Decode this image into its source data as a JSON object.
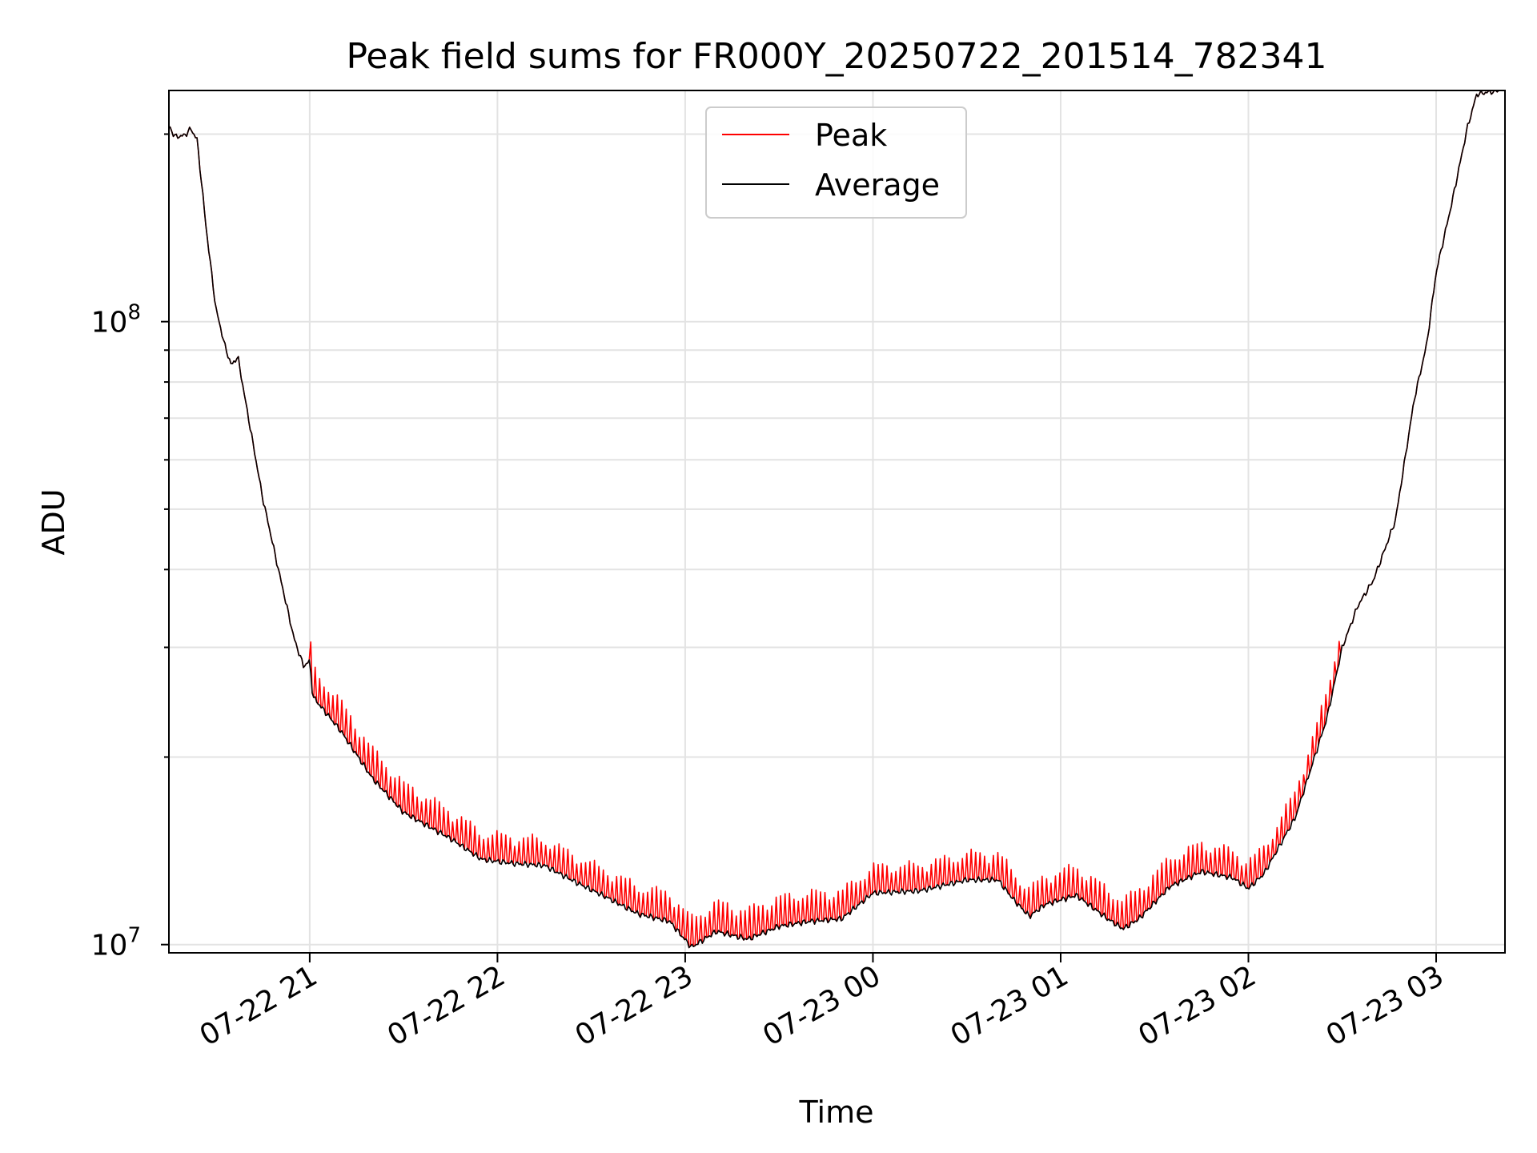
{
  "chart_data": {
    "type": "line",
    "title": "Peak field sums for FR000Y_20250722_201514_782341",
    "xlabel": "Time",
    "ylabel": "ADU",
    "x_type": "datetime",
    "xlim": [
      "2025-07-22 20:15",
      "2025-07-23 03:22"
    ],
    "x_ticks": [
      {
        "x": "2025-07-22 21:00",
        "label": "07-22 21"
      },
      {
        "x": "2025-07-22 22:00",
        "label": "07-22 22"
      },
      {
        "x": "2025-07-22 23:00",
        "label": "07-22 23"
      },
      {
        "x": "2025-07-23 00:00",
        "label": "07-23 00"
      },
      {
        "x": "2025-07-23 01:00",
        "label": "07-23 01"
      },
      {
        "x": "2025-07-23 02:00",
        "label": "07-23 02"
      },
      {
        "x": "2025-07-23 03:00",
        "label": "07-23 03"
      }
    ],
    "yscale": "log",
    "ylim": [
      9700000,
      235000000
    ],
    "y_ticks": [
      {
        "value": 10000000,
        "base": "10",
        "exp": "7"
      },
      {
        "value": 100000000,
        "base": "10",
        "exp": "8"
      }
    ],
    "grid": true,
    "legend": {
      "position": "top-center"
    },
    "series": [
      {
        "name": "Average",
        "color": "#000000",
        "points": [
          [
            "2025-07-22 20:15",
            206000000
          ],
          [
            "2025-07-22 20:17",
            198000000
          ],
          [
            "2025-07-22 20:20",
            199000000
          ],
          [
            "2025-07-22 20:22",
            204000000
          ],
          [
            "2025-07-22 20:24",
            196000000
          ],
          [
            "2025-07-22 20:27",
            140000000
          ],
          [
            "2025-07-22 20:30",
            105000000
          ],
          [
            "2025-07-22 20:33",
            91000000
          ],
          [
            "2025-07-22 20:35",
            85000000
          ],
          [
            "2025-07-22 20:37",
            88000000
          ],
          [
            "2025-07-22 20:40",
            72000000
          ],
          [
            "2025-07-22 20:45",
            52000000
          ],
          [
            "2025-07-22 20:50",
            40000000
          ],
          [
            "2025-07-22 20:55",
            31000000
          ],
          [
            "2025-07-22 20:58",
            28000000
          ],
          [
            "2025-07-22 21:00",
            28500000
          ],
          [
            "2025-07-22 21:01",
            25000000
          ],
          [
            "2025-07-22 21:10",
            22000000
          ],
          [
            "2025-07-22 21:20",
            18500000
          ],
          [
            "2025-07-22 21:30",
            16300000
          ],
          [
            "2025-07-22 21:45",
            14800000
          ],
          [
            "2025-07-22 21:55",
            13700000
          ],
          [
            "2025-07-22 22:05",
            13500000
          ],
          [
            "2025-07-22 22:15",
            13400000
          ],
          [
            "2025-07-22 22:25",
            12600000
          ],
          [
            "2025-07-22 22:35",
            11900000
          ],
          [
            "2025-07-22 22:45",
            11200000
          ],
          [
            "2025-07-22 22:55",
            10900000
          ],
          [
            "2025-07-22 23:02",
            9900000
          ],
          [
            "2025-07-22 23:10",
            10500000
          ],
          [
            "2025-07-22 23:20",
            10200000
          ],
          [
            "2025-07-22 23:30",
            10700000
          ],
          [
            "2025-07-22 23:40",
            10900000
          ],
          [
            "2025-07-22 23:50",
            11000000
          ],
          [
            "2025-07-23 00:00",
            12100000
          ],
          [
            "2025-07-23 00:15",
            12200000
          ],
          [
            "2025-07-23 00:30",
            12700000
          ],
          [
            "2025-07-23 00:40",
            12700000
          ],
          [
            "2025-07-23 00:45",
            11800000
          ],
          [
            "2025-07-23 00:50",
            11100000
          ],
          [
            "2025-07-23 00:55",
            11600000
          ],
          [
            "2025-07-23 01:05",
            12000000
          ],
          [
            "2025-07-23 01:15",
            11000000
          ],
          [
            "2025-07-23 01:20",
            10600000
          ],
          [
            "2025-07-23 01:25",
            11000000
          ],
          [
            "2025-07-23 01:35",
            12400000
          ],
          [
            "2025-07-23 01:45",
            13100000
          ],
          [
            "2025-07-23 01:55",
            12800000
          ],
          [
            "2025-07-23 02:00",
            12300000
          ],
          [
            "2025-07-23 02:05",
            13000000
          ],
          [
            "2025-07-23 02:15",
            16000000
          ],
          [
            "2025-07-23 02:25",
            23000000
          ],
          [
            "2025-07-23 02:30",
            30000000
          ],
          [
            "2025-07-23 02:35",
            35000000
          ],
          [
            "2025-07-23 02:40",
            38500000
          ],
          [
            "2025-07-23 02:47",
            48000000
          ],
          [
            "2025-07-23 02:53",
            75000000
          ],
          [
            "2025-07-23 02:57",
            92000000
          ],
          [
            "2025-07-23 03:00",
            120000000
          ],
          [
            "2025-07-23 03:05",
            155000000
          ],
          [
            "2025-07-23 03:10",
            205000000
          ],
          [
            "2025-07-23 03:13",
            232000000
          ],
          [
            "2025-07-23 03:20",
            235000000
          ]
        ]
      },
      {
        "name": "Peak",
        "color": "#ff0000",
        "relation": "tracks Average with frequent short upward spikes about 10-15% above it between 21:00 and 02:30",
        "spike_ratio": 1.12
      }
    ]
  }
}
